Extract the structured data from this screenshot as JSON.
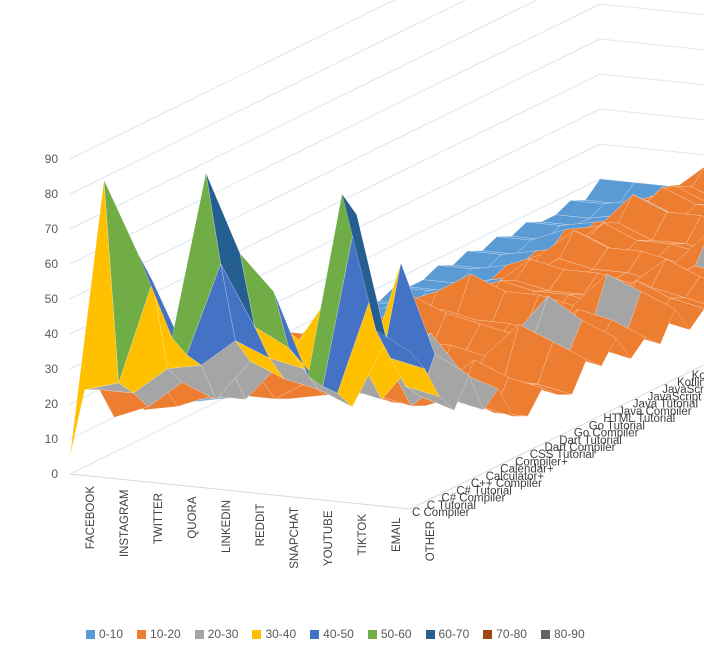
{
  "chart_data": {
    "type": "surface",
    "title": "",
    "x": [
      "FACEBOOK",
      "INSTAGRAM",
      "TWITTER",
      "QUORA",
      "LINKEDIN",
      "REDDIT",
      "SNAPCHAT",
      "YOUTUBE",
      "TIKTOK",
      "EMAIL",
      "OTHER"
    ],
    "y": [
      "C Compiler",
      "C Tutorial",
      "C# Compiler",
      "C# Tutorial",
      "C++ Compiler",
      "Calculator+",
      "Calendar+",
      "Compiler+",
      "CSS Tutorial",
      "Dart Compiler",
      "Dart Tutorial",
      "Go Compiler",
      "Go Tutorial",
      "HTML Tutorial",
      "Java Compiler",
      "Java Tutorial",
      "JavaScript Compiler",
      "JavaScript Tutorial",
      "Kotlin Compiler",
      "Kotlin Tutorial",
      "Motivation+",
      "Notes+",
      "PHP Compiler",
      "PHP Tutorial",
      "Python Compiler",
      "Python Tutorial",
      "Ruby Compiler",
      "Ruby Tutorial",
      "Success Stories",
      "Swift Compiler",
      "Swift Tutorial",
      "Tasks+",
      "Timer+",
      "Travel Diaries",
      "VBA Tutorial",
      "Weather+",
      "Dictionary"
    ],
    "zlim": [
      0,
      90
    ],
    "zticks": [
      0,
      10,
      20,
      30,
      40,
      50,
      60,
      70,
      80,
      90
    ],
    "bands": [
      "0-10",
      "10-20",
      "20-30",
      "30-40",
      "40-50",
      "50-60",
      "60-70",
      "70-80",
      "80-90"
    ],
    "band_colors": [
      "#5b9bd5",
      "#ed7d31",
      "#a5a5a5",
      "#ffc000",
      "#4472c4",
      "#70ad47",
      "#255e91",
      "#9e480e",
      "#636363"
    ],
    "z": [
      [
        5,
        22,
        20,
        10,
        18,
        8,
        12,
        6,
        4,
        10,
        8,
        6,
        10,
        8,
        12,
        6,
        8,
        6,
        10,
        6,
        8,
        6,
        8,
        6,
        6,
        8,
        6,
        8,
        6,
        8,
        6,
        8,
        6,
        6,
        8,
        6,
        10
      ],
      [
        85,
        25,
        20,
        14,
        18,
        10,
        12,
        8,
        6,
        10,
        8,
        6,
        10,
        8,
        12,
        6,
        8,
        6,
        10,
        6,
        8,
        6,
        8,
        6,
        6,
        8,
        6,
        8,
        6,
        8,
        6,
        8,
        6,
        6,
        8,
        6,
        10
      ],
      [
        65,
        55,
        28,
        22,
        30,
        14,
        22,
        10,
        8,
        12,
        10,
        8,
        14,
        10,
        14,
        8,
        12,
        8,
        14,
        8,
        10,
        8,
        10,
        8,
        8,
        10,
        8,
        10,
        8,
        12,
        8,
        10,
        8,
        8,
        10,
        8,
        10
      ],
      [
        42,
        35,
        30,
        18,
        25,
        14,
        18,
        10,
        8,
        14,
        12,
        8,
        16,
        12,
        18,
        10,
        14,
        10,
        18,
        10,
        14,
        10,
        12,
        10,
        10,
        14,
        10,
        12,
        10,
        14,
        10,
        12,
        10,
        10,
        14,
        10,
        12
      ],
      [
        90,
        62,
        38,
        30,
        42,
        25,
        30,
        16,
        10,
        18,
        14,
        10,
        22,
        16,
        26,
        14,
        18,
        14,
        24,
        14,
        18,
        16,
        20,
        16,
        16,
        22,
        18,
        20,
        18,
        24,
        20,
        22,
        20,
        18,
        22,
        20,
        24
      ],
      [
        68,
        45,
        34,
        26,
        35,
        22,
        28,
        14,
        12,
        16,
        12,
        10,
        18,
        14,
        22,
        12,
        16,
        12,
        20,
        12,
        16,
        14,
        18,
        14,
        14,
        18,
        14,
        16,
        14,
        20,
        16,
        18,
        16,
        14,
        18,
        16,
        18
      ],
      [
        58,
        40,
        32,
        24,
        50,
        20,
        24,
        14,
        10,
        16,
        12,
        10,
        18,
        14,
        20,
        12,
        16,
        12,
        20,
        12,
        16,
        14,
        18,
        14,
        14,
        18,
        14,
        16,
        14,
        20,
        16,
        18,
        16,
        14,
        18,
        16,
        18
      ],
      [
        35,
        30,
        26,
        20,
        28,
        18,
        22,
        12,
        10,
        14,
        12,
        10,
        16,
        12,
        18,
        12,
        14,
        12,
        18,
        12,
        14,
        12,
        16,
        12,
        12,
        16,
        12,
        14,
        12,
        18,
        14,
        16,
        14,
        12,
        16,
        14,
        16
      ],
      [
        88,
        80,
        55,
        40,
        60,
        30,
        36,
        20,
        14,
        22,
        16,
        12,
        26,
        20,
        30,
        16,
        22,
        16,
        28,
        16,
        22,
        18,
        24,
        18,
        18,
        26,
        20,
        24,
        20,
        28,
        22,
        26,
        22,
        20,
        26,
        22,
        26
      ],
      [
        50,
        40,
        30,
        25,
        35,
        20,
        25,
        14,
        10,
        18,
        14,
        12,
        22,
        16,
        24,
        14,
        20,
        14,
        24,
        14,
        18,
        16,
        20,
        16,
        16,
        22,
        18,
        20,
        18,
        24,
        20,
        22,
        20,
        18,
        22,
        20,
        22
      ],
      [
        45,
        38,
        28,
        22,
        30,
        18,
        22,
        12,
        10,
        16,
        12,
        10,
        18,
        14,
        20,
        12,
        16,
        12,
        20,
        12,
        16,
        14,
        18,
        14,
        14,
        18,
        14,
        16,
        14,
        20,
        16,
        18,
        16,
        14,
        18,
        16,
        18
      ]
    ]
  },
  "legend": {
    "items": [
      "0-10",
      "10-20",
      "20-30",
      "30-40",
      "40-50",
      "50-60",
      "60-70",
      "70-80",
      "80-90"
    ]
  }
}
